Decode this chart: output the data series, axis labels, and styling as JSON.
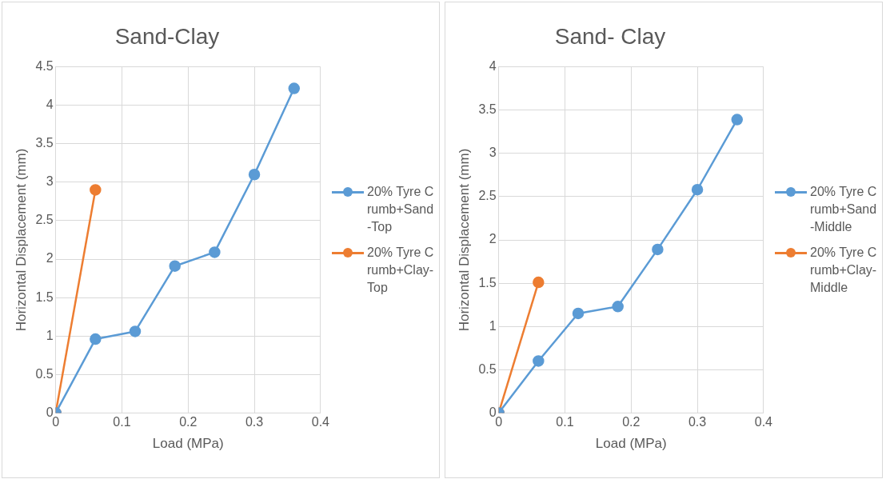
{
  "chart_data": [
    {
      "type": "line",
      "title": "Sand-Clay",
      "xlabel": "Load (MPa)",
      "ylabel": "Horizontal Displacement (mm)",
      "xlim": [
        0,
        0.4
      ],
      "xticks": [
        0,
        0.1,
        0.2,
        0.3,
        0.4
      ],
      "ylim": [
        0,
        4.5
      ],
      "yticks": [
        0,
        0.5,
        1,
        1.5,
        2,
        2.5,
        3,
        3.5,
        4,
        4.5
      ],
      "grid": true,
      "legend": "right",
      "marker": "circle",
      "line_style": "solid",
      "series": [
        {
          "name": "20% Tyre Crumb+Sand-Top",
          "color": "#5b9bd5",
          "x": [
            0,
            0.06,
            0.12,
            0.18,
            0.24,
            0.3,
            0.36
          ],
          "values": [
            0,
            0.96,
            1.06,
            1.91,
            2.09,
            3.1,
            4.22
          ]
        },
        {
          "name": "20% Tyre Crumb+Clay-Top",
          "color": "#ed7d31",
          "x": [
            0,
            0.06
          ],
          "values": [
            0,
            2.9
          ]
        }
      ]
    },
    {
      "type": "line",
      "title": "Sand- Clay",
      "xlabel": "Load (MPa)",
      "ylabel": "Horizontal Displacement (mm)",
      "xlim": [
        0,
        0.4
      ],
      "xticks": [
        0,
        0.1,
        0.2,
        0.3,
        0.4
      ],
      "ylim": [
        0,
        4
      ],
      "yticks": [
        0,
        0.5,
        1,
        1.5,
        2,
        2.5,
        3,
        3.5,
        4
      ],
      "grid": true,
      "legend": "right",
      "marker": "circle",
      "line_style": "solid",
      "series": [
        {
          "name": "20% Tyre Crumb+Sand-Middle",
          "color": "#5b9bd5",
          "x": [
            0,
            0.06,
            0.12,
            0.18,
            0.24,
            0.3,
            0.36
          ],
          "values": [
            0,
            0.6,
            1.15,
            1.23,
            1.89,
            2.58,
            3.39
          ]
        },
        {
          "name": "20% Tyre Crumb+Clay-Middle",
          "color": "#ed7d31",
          "x": [
            0,
            0.06
          ],
          "values": [
            0,
            1.51
          ]
        }
      ]
    }
  ]
}
